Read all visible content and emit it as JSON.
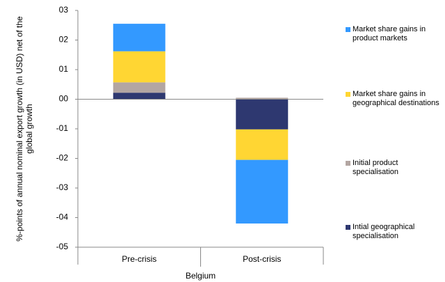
{
  "chart_data": {
    "type": "stacked-bar",
    "y_axis_label": "%-points of annual nominal export growth (in USD) net of the global growth",
    "x_group_label": "Belgium",
    "categories": [
      "Pre-crisis",
      "Post-crisis"
    ],
    "series": [
      {
        "name": "Market share gains in product markets",
        "color": "#3399ff",
        "values": [
          0.93,
          -2.15
        ]
      },
      {
        "name": "Market share gains in geographical destinations",
        "color": "#ffd633",
        "values": [
          1.05,
          -1.03
        ]
      },
      {
        "name": "Initial product specialisation",
        "color": "#b3a6a2",
        "values": [
          0.35,
          0.05
        ]
      },
      {
        "name": "Intial geographical specialisation",
        "color": "#2e3870",
        "values": [
          0.22,
          -1.02
        ]
      }
    ],
    "ylim": [
      -5,
      3
    ],
    "yticks": [
      {
        "value": 3,
        "label": "03"
      },
      {
        "value": 2,
        "label": "02"
      },
      {
        "value": 1,
        "label": "01"
      },
      {
        "value": 0,
        "label": "00"
      },
      {
        "value": -1,
        "label": "-01"
      },
      {
        "value": -2,
        "label": "-02"
      },
      {
        "value": -3,
        "label": "-03"
      },
      {
        "value": -4,
        "label": "-04"
      },
      {
        "value": -5,
        "label": "-05"
      }
    ]
  }
}
